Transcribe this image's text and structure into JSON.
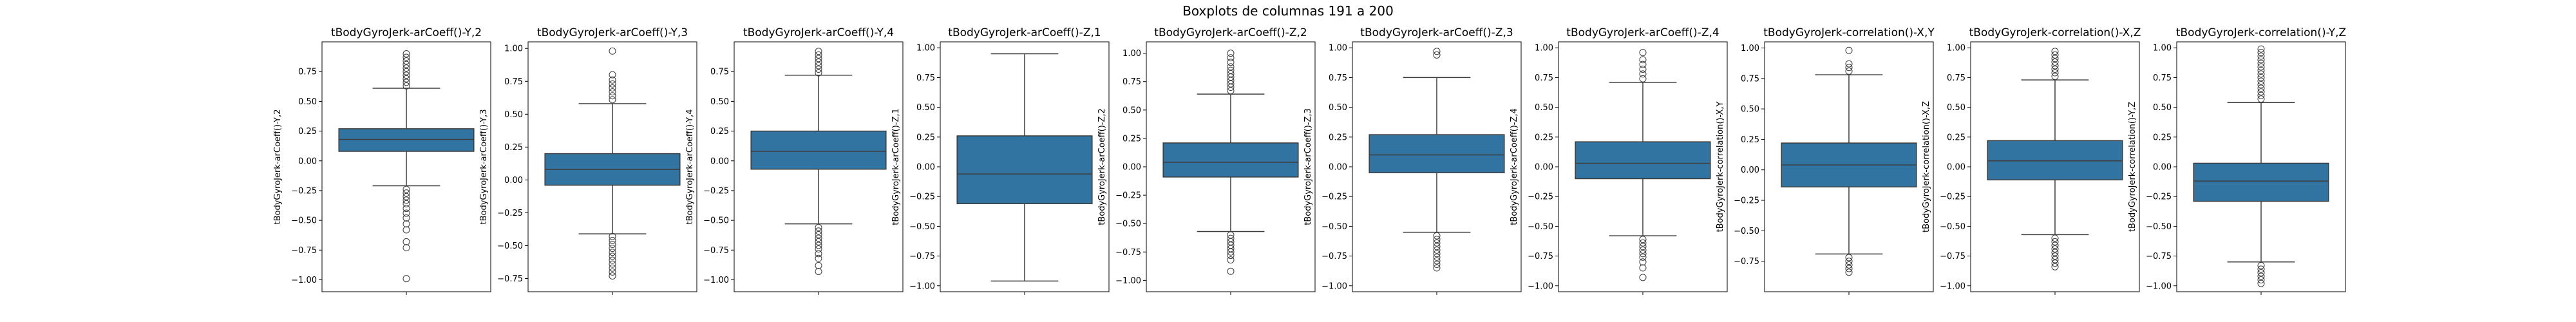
{
  "figure_title": "Boxplots de columnas 191 a 200",
  "chart_data": [
    {
      "type": "box",
      "title": "tBodyGyroJerk-arCoeff()-Y,2",
      "ylabel": "tBodyGyroJerk-arCoeff()-Y,2",
      "ylim": [
        -1.1,
        1.0
      ],
      "yticks": [
        -1.0,
        -0.75,
        -0.5,
        -0.25,
        0.0,
        0.25,
        0.5,
        0.75
      ],
      "yticklabels": [
        "−1.00",
        "−0.75",
        "−0.50",
        "−0.25",
        "0.00",
        "0.25",
        "0.50",
        "0.75"
      ],
      "q1": 0.08,
      "median": 0.18,
      "q3": 0.27,
      "whisker_low": -0.21,
      "whisker_high": 0.61,
      "outliers": [
        0.63,
        0.66,
        0.69,
        0.72,
        0.75,
        0.78,
        0.81,
        0.84,
        0.87,
        0.9,
        -0.24,
        -0.27,
        -0.3,
        -0.33,
        -0.36,
        -0.4,
        -0.44,
        -0.48,
        -0.53,
        -0.58,
        -0.68,
        -0.73,
        -0.99
      ]
    },
    {
      "type": "box",
      "title": "tBodyGyroJerk-arCoeff()-Y,3",
      "ylabel": "tBodyGyroJerk-arCoeff()-Y,3",
      "ylim": [
        -0.85,
        1.05
      ],
      "yticks": [
        -0.75,
        -0.5,
        -0.25,
        0.0,
        0.25,
        0.5,
        0.75,
        1.0
      ],
      "yticklabels": [
        "−0.75",
        "−0.50",
        "−0.25",
        "0.00",
        "0.25",
        "0.50",
        "0.75",
        "1.00"
      ],
      "q1": -0.04,
      "median": 0.08,
      "q3": 0.2,
      "whisker_low": -0.41,
      "whisker_high": 0.58,
      "outliers": [
        0.61,
        0.64,
        0.67,
        0.7,
        0.73,
        0.76,
        0.8,
        0.98,
        -0.43,
        -0.46,
        -0.49,
        -0.52,
        -0.55,
        -0.58,
        -0.61,
        -0.64,
        -0.67,
        -0.7,
        -0.73
      ]
    },
    {
      "type": "box",
      "title": "tBodyGyroJerk-arCoeff()-Y,4",
      "ylabel": "tBodyGyroJerk-arCoeff()-Y,4",
      "ylim": [
        -1.1,
        1.0
      ],
      "yticks": [
        -1.0,
        -0.75,
        -0.5,
        -0.25,
        0.0,
        0.25,
        0.5,
        0.75
      ],
      "yticklabels": [
        "−1.00",
        "−0.75",
        "−0.50",
        "−0.25",
        "0.00",
        "0.25",
        "0.50",
        "0.75"
      ],
      "q1": -0.07,
      "median": 0.08,
      "q3": 0.25,
      "whisker_low": -0.53,
      "whisker_high": 0.72,
      "outliers": [
        0.74,
        0.77,
        0.8,
        0.83,
        0.86,
        0.89,
        0.92,
        -0.56,
        -0.59,
        -0.62,
        -0.65,
        -0.68,
        -0.71,
        -0.74,
        -0.78,
        -0.82,
        -0.88,
        -0.93
      ]
    },
    {
      "type": "box",
      "title": "tBodyGyroJerk-arCoeff()-Z,1",
      "ylabel": "tBodyGyroJerk-arCoeff()-Z,1",
      "ylim": [
        -1.05,
        1.05
      ],
      "yticks": [
        -1.0,
        -0.75,
        -0.5,
        -0.25,
        0.0,
        0.25,
        0.5,
        0.75,
        1.0
      ],
      "yticklabels": [
        "−1.00",
        "−0.75",
        "−0.50",
        "−0.25",
        "0.00",
        "0.25",
        "0.50",
        "0.75",
        "1.00"
      ],
      "q1": -0.31,
      "median": -0.06,
      "q3": 0.26,
      "whisker_low": -0.96,
      "whisker_high": 0.95,
      "outliers": []
    },
    {
      "type": "box",
      "title": "tBodyGyroJerk-arCoeff()-Z,2",
      "ylabel": "tBodyGyroJerk-arCoeff()-Z,2",
      "ylim": [
        -1.1,
        1.1
      ],
      "yticks": [
        -1.0,
        -0.75,
        -0.5,
        -0.25,
        0.0,
        0.25,
        0.5,
        0.75,
        1.0
      ],
      "yticklabels": [
        "−1.00",
        "−0.75",
        "−0.50",
        "−0.25",
        "0.00",
        "0.25",
        "0.50",
        "0.75",
        "1.00"
      ],
      "q1": -0.09,
      "median": 0.04,
      "q3": 0.21,
      "whisker_low": -0.57,
      "whisker_high": 0.64,
      "outliers": [
        0.67,
        0.7,
        0.73,
        0.76,
        0.79,
        0.82,
        0.85,
        0.88,
        0.92,
        0.96,
        1.0,
        -0.6,
        -0.63,
        -0.66,
        -0.69,
        -0.72,
        -0.75,
        -0.78,
        -0.82,
        -0.92
      ]
    },
    {
      "type": "box",
      "title": "tBodyGyroJerk-arCoeff()-Z,3",
      "ylabel": "tBodyGyroJerk-arCoeff()-Z,3",
      "ylim": [
        -1.05,
        1.05
      ],
      "yticks": [
        -1.0,
        -0.75,
        -0.5,
        -0.25,
        0.0,
        0.25,
        0.5,
        0.75,
        1.0
      ],
      "yticklabels": [
        "−1.00",
        "−0.75",
        "−0.50",
        "−0.25",
        "0.00",
        "0.25",
        "0.50",
        "0.75",
        "1.00"
      ],
      "q1": -0.05,
      "median": 0.1,
      "q3": 0.27,
      "whisker_low": -0.55,
      "whisker_high": 0.75,
      "outliers": [
        0.94,
        0.97,
        -0.58,
        -0.61,
        -0.64,
        -0.67,
        -0.7,
        -0.73,
        -0.76,
        -0.79,
        -0.82,
        -0.85
      ]
    },
    {
      "type": "box",
      "title": "tBodyGyroJerk-arCoeff()-Z,4",
      "ylabel": "tBodyGyroJerk-arCoeff()-Z,4",
      "ylim": [
        -1.05,
        1.05
      ],
      "yticks": [
        -1.0,
        -0.75,
        -0.5,
        -0.25,
        0.0,
        0.25,
        0.5,
        0.75,
        1.0
      ],
      "yticklabels": [
        "−1.00",
        "−0.75",
        "−0.50",
        "−0.25",
        "0.00",
        "0.25",
        "0.50",
        "0.75",
        "1.00"
      ],
      "q1": -0.1,
      "median": 0.03,
      "q3": 0.21,
      "whisker_low": -0.58,
      "whisker_high": 0.71,
      "outliers": [
        0.74,
        0.78,
        0.82,
        0.86,
        0.9,
        0.96,
        -0.61,
        -0.64,
        -0.67,
        -0.7,
        -0.73,
        -0.76,
        -0.8,
        -0.85,
        -0.93
      ]
    },
    {
      "type": "box",
      "title": "tBodyGyroJerk-correlation()-X,Y",
      "ylabel": "tBodyGyroJerk-correlation()-X,Y",
      "ylim": [
        -1.0,
        1.05
      ],
      "yticks": [
        -0.75,
        -0.5,
        -0.25,
        0.0,
        0.25,
        0.5,
        0.75,
        1.0
      ],
      "yticklabels": [
        "−0.75",
        "−0.50",
        "−0.25",
        "0.00",
        "0.25",
        "0.50",
        "0.75",
        "1.00"
      ],
      "q1": -0.14,
      "median": 0.04,
      "q3": 0.22,
      "whisker_low": -0.69,
      "whisker_high": 0.78,
      "outliers": [
        0.81,
        0.84,
        0.87,
        0.98,
        -0.72,
        -0.75,
        -0.78,
        -0.81,
        -0.84
      ]
    },
    {
      "type": "box",
      "title": "tBodyGyroJerk-correlation()-X,Z",
      "ylabel": "tBodyGyroJerk-correlation()-X,Z",
      "ylim": [
        -1.05,
        1.05
      ],
      "yticks": [
        -1.0,
        -0.75,
        -0.5,
        -0.25,
        0.0,
        0.25,
        0.5,
        0.75,
        1.0
      ],
      "yticklabels": [
        "−1.00",
        "−0.75",
        "−0.50",
        "−0.25",
        "0.00",
        "0.25",
        "0.50",
        "0.75",
        "1.00"
      ],
      "q1": -0.11,
      "median": 0.05,
      "q3": 0.22,
      "whisker_low": -0.57,
      "whisker_high": 0.73,
      "outliers": [
        0.76,
        0.79,
        0.82,
        0.85,
        0.88,
        0.91,
        0.94,
        0.97,
        -0.6,
        -0.63,
        -0.66,
        -0.69,
        -0.72,
        -0.75,
        -0.78,
        -0.81,
        -0.84
      ]
    },
    {
      "type": "box",
      "title": "tBodyGyroJerk-correlation()-Y,Z",
      "ylabel": "tBodyGyroJerk-correlation()-Y,Z",
      "ylim": [
        -1.05,
        1.05
      ],
      "yticks": [
        -1.0,
        -0.75,
        -0.5,
        -0.25,
        0.0,
        0.25,
        0.5,
        0.75,
        1.0
      ],
      "yticklabels": [
        "−1.00",
        "−0.75",
        "−0.50",
        "−0.25",
        "0.00",
        "0.25",
        "0.50",
        "0.75",
        "1.00"
      ],
      "q1": -0.29,
      "median": -0.12,
      "q3": 0.03,
      "whisker_low": -0.8,
      "whisker_high": 0.54,
      "outliers": [
        0.57,
        0.6,
        0.63,
        0.66,
        0.69,
        0.72,
        0.75,
        0.78,
        0.81,
        0.84,
        0.87,
        0.9,
        0.93,
        0.96,
        0.99,
        -0.83,
        -0.86,
        -0.89,
        -0.92,
        -0.95,
        -0.98
      ]
    }
  ],
  "colors": {
    "box": "#3274a1",
    "line": "#3d3d3d",
    "outlier_edge": "#3d3d3d",
    "axes": "#000000"
  }
}
